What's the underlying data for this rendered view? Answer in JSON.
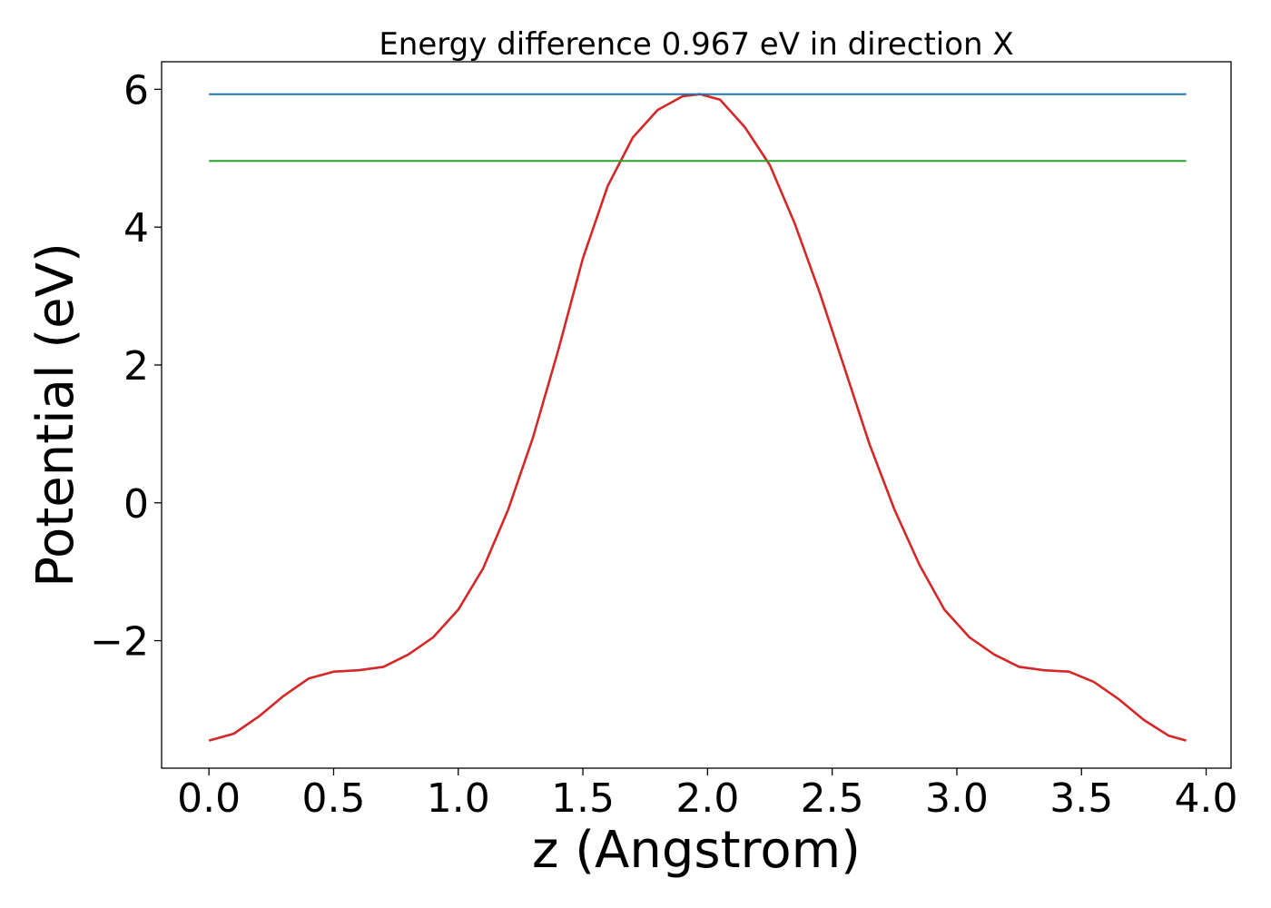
{
  "chart_data": {
    "type": "line",
    "title": "Energy difference 0.967 eV in direction X",
    "xlabel": "z (Angstrom)",
    "ylabel": "Potential (eV)",
    "xlim": [
      -0.19,
      4.1
    ],
    "ylim": [
      -3.85,
      6.4
    ],
    "xticks": [
      0.0,
      0.5,
      1.0,
      1.5,
      2.0,
      2.5,
      3.0,
      3.5,
      4.0
    ],
    "xtick_labels": [
      "0.0",
      "0.5",
      "1.0",
      "1.5",
      "2.0",
      "2.5",
      "3.0",
      "3.5",
      "4.0"
    ],
    "yticks": [
      -2,
      0,
      2,
      4,
      6
    ],
    "ytick_labels": [
      "−2",
      "0",
      "2",
      "4",
      "6"
    ],
    "grid": false,
    "series": [
      {
        "color": "#d62728",
        "x": [
          0.0,
          0.1,
          0.2,
          0.3,
          0.4,
          0.5,
          0.6,
          0.7,
          0.8,
          0.9,
          1.0,
          1.1,
          1.2,
          1.3,
          1.4,
          1.5,
          1.6,
          1.7,
          1.8,
          1.9,
          1.97,
          2.05,
          2.15,
          2.25,
          2.35,
          2.45,
          2.55,
          2.65,
          2.75,
          2.85,
          2.95,
          3.05,
          3.15,
          3.25,
          3.35,
          3.45,
          3.55,
          3.65,
          3.75,
          3.85,
          3.92
        ],
        "y": [
          -3.45,
          -3.35,
          -3.1,
          -2.8,
          -2.55,
          -2.45,
          -2.43,
          -2.38,
          -2.2,
          -1.95,
          -1.55,
          -0.95,
          -0.1,
          0.95,
          2.2,
          3.55,
          4.6,
          5.3,
          5.7,
          5.9,
          5.93,
          5.85,
          5.45,
          4.9,
          4.05,
          3.05,
          1.95,
          0.85,
          -0.1,
          -0.9,
          -1.55,
          -1.95,
          -2.2,
          -2.38,
          -2.43,
          -2.45,
          -2.6,
          -2.85,
          -3.15,
          -3.38,
          -3.45
        ]
      },
      {
        "color": "#1f77b4",
        "x": [
          0.0,
          3.92
        ],
        "y": [
          5.93,
          5.93
        ]
      },
      {
        "color": "#2ca02c",
        "x": [
          0.0,
          3.92
        ],
        "y": [
          4.96,
          4.96
        ]
      }
    ]
  }
}
